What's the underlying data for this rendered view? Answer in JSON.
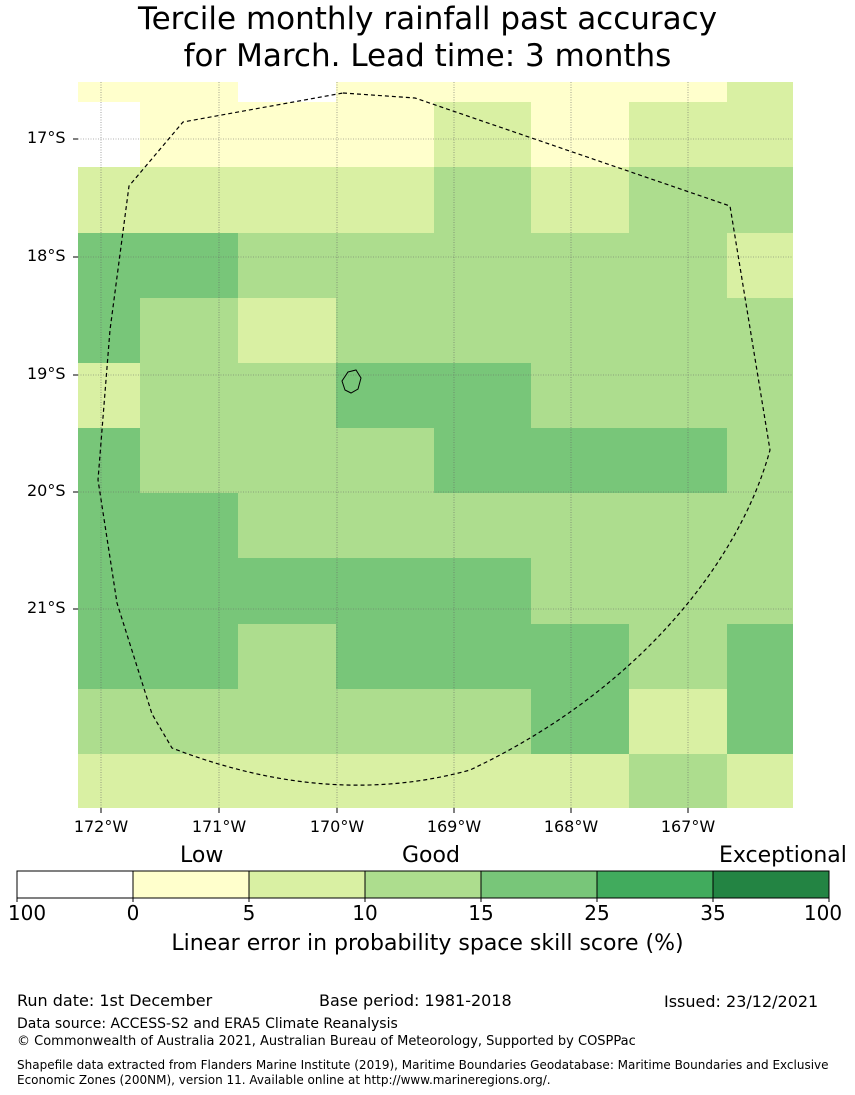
{
  "title_line1": "Tercile monthly rainfall past accuracy",
  "title_line2": "for March. Lead time: 3 months",
  "map": {
    "lat_labels": [
      "17°S",
      "18°S",
      "19°S",
      "20°S",
      "21°S"
    ],
    "lon_labels": [
      "172°W",
      "171°W",
      "170°W",
      "169°W",
      "168°W",
      "167°W"
    ],
    "colors": [
      "#ffffff",
      "#ffffcc",
      "#d9f0a3",
      "#addd8e",
      "#78c679",
      "#41ab5d",
      "#238443"
    ],
    "grid_rows": [
      [
        1,
        1,
        1,
        1,
        1,
        1,
        1,
        2
      ],
      [
        0,
        1,
        1,
        1,
        2,
        1,
        2,
        2
      ],
      [
        2,
        2,
        2,
        2,
        3,
        2,
        3,
        3
      ],
      [
        4,
        4,
        3,
        3,
        3,
        3,
        3,
        2
      ],
      [
        4,
        3,
        2,
        3,
        3,
        3,
        3,
        3
      ],
      [
        2,
        3,
        3,
        4,
        4,
        3,
        3,
        3
      ],
      [
        4,
        3,
        3,
        3,
        4,
        4,
        4,
        3
      ],
      [
        4,
        4,
        3,
        3,
        3,
        3,
        3,
        3
      ],
      [
        4,
        4,
        4,
        4,
        4,
        3,
        3,
        3
      ],
      [
        4,
        4,
        3,
        4,
        4,
        4,
        3,
        4
      ],
      [
        3,
        3,
        3,
        3,
        3,
        4,
        2,
        4
      ],
      [
        2,
        2,
        2,
        2,
        2,
        2,
        3,
        2
      ]
    ],
    "top_strip": [
      1,
      1,
      -1,
      1,
      1,
      1,
      1,
      2
    ]
  },
  "legend": {
    "categories": [
      "Low",
      "Good",
      "Exceptional"
    ],
    "ticks": [
      "100",
      "0",
      "5",
      "10",
      "15",
      "25",
      "35",
      "100"
    ],
    "label": "Linear error in probability space skill score (%)"
  },
  "footer": {
    "run_date": "Run date: 1st December",
    "base_period": "Base period: 1981-2018",
    "issued": "Issued: 23/12/2021",
    "data_source": "Data source: ACCESS-S2 and ERA5 Climate Reanalysis",
    "copyright": "© Commonwealth of Australia 2021, Australian Bureau of Meteorology, Supported by COSPPac",
    "shapefile": "Shapefile data extracted from Flanders Marine Institute (2019), Maritime Boundaries Geodatabase: Maritime Boundaries and Exclusive Economic Zones (200NM), version 11. Available online at http://www.marineregions.org/."
  }
}
